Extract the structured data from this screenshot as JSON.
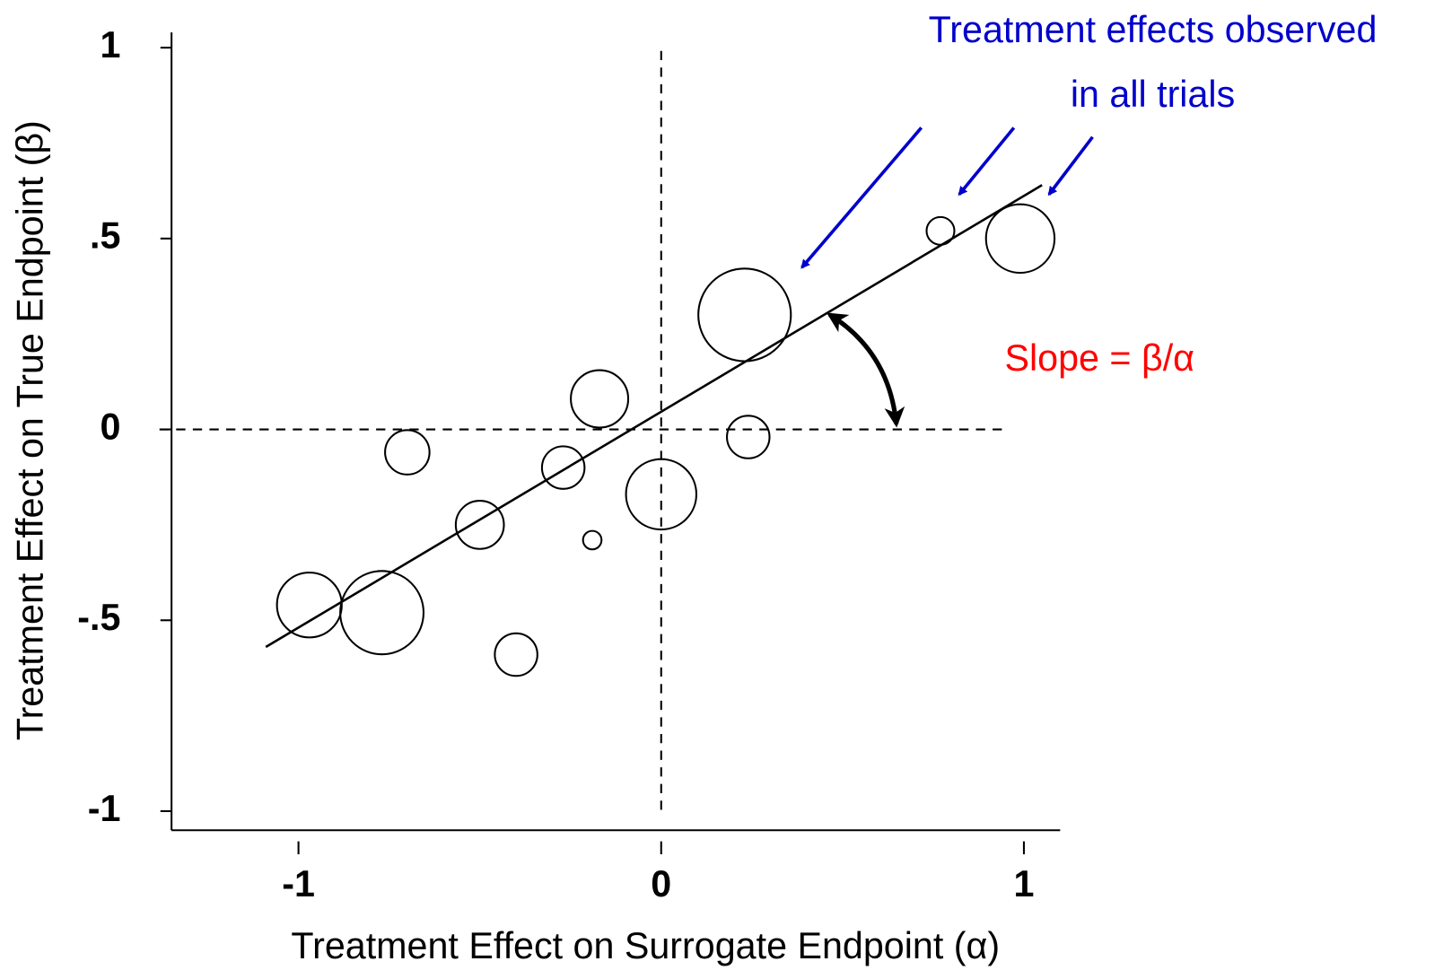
{
  "chart_data": {
    "type": "scatter",
    "x_label": "Treatment Effect on Surrogate Endpoint (α)",
    "y_label": "Treatment Effect on True Endpoint (β)",
    "annotations": [
      "Treatment effects observed",
      "in all trials",
      "Slope = β/α"
    ],
    "xlim": [
      -1.35,
      1.1
    ],
    "ylim": [
      -1.05,
      1.04
    ],
    "xticks": [
      -1,
      0,
      1
    ],
    "yticks": [
      1,
      {
        "value": 0.5,
        "label": ".5"
      },
      0,
      {
        "value": -0.5,
        "label": "-.5"
      },
      -1
    ],
    "series": [
      {
        "color": "#000000",
        "x": [
          -0.97,
          -0.77,
          -0.7,
          -0.5,
          -0.4,
          -0.27,
          -0.19,
          -0.17,
          0.0,
          0.23,
          0.24,
          0.77,
          0.99
        ],
        "y": [
          -0.46,
          -0.48,
          -0.06,
          -0.25,
          -0.59,
          -0.1,
          -0.29,
          0.08,
          -0.17,
          0.3,
          -0.02,
          0.52,
          0.5
        ],
        "sizes": [
          35,
          45,
          24,
          26,
          23,
          23,
          10,
          31,
          38,
          50,
          23,
          15,
          37
        ]
      }
    ],
    "fit_line": {
      "x": [
        -1.09,
        1.05
      ],
      "y": [
        -0.57,
        0.64
      ]
    }
  }
}
